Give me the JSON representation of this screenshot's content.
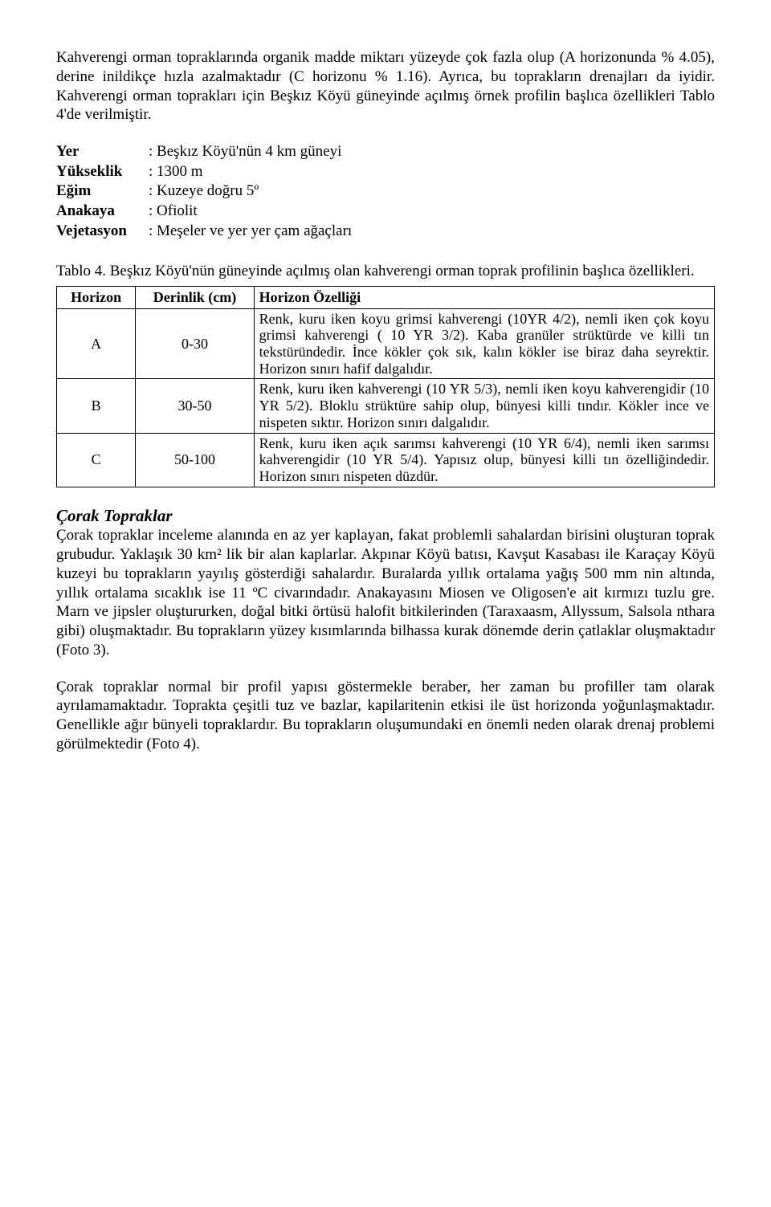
{
  "intro": "Kahverengi orman topraklarında organik madde miktarı yüzeyde çok fazla olup (A horizonunda % 4.05), derine inildikçe hızla azalmaktadır (C horizonu % 1.16). Ayrıca, bu toprakların drenajları da iyidir. Kahverengi orman toprakları için Beşkız Köyü güneyinde açılmış örnek profilin başlıca özellikleri Tablo 4'de verilmiştir.",
  "meta": {
    "rows": [
      {
        "label": "Yer",
        "value": ": Beşkız Köyü'nün 4 km güneyi"
      },
      {
        "label": "Yükseklik",
        "value": ": 1300 m"
      },
      {
        "label": "Eğim",
        "value": ": Kuzeye doğru 5º"
      },
      {
        "label": "Anakaya",
        "value": ": Ofiolit"
      },
      {
        "label": "Vejetasyon",
        "value": ": Meşeler ve yer yer çam ağaçları"
      }
    ]
  },
  "table_caption": "Tablo 4. Beşkız Köyü'nün güneyinde açılmış olan kahverengi orman toprak profilinin başlıca özellikleri.",
  "table": {
    "headers": [
      "Horizon",
      "Derinlik (cm)",
      "Horizon Özelliği"
    ],
    "rows": [
      {
        "h": "A",
        "d": "0-30",
        "desc": "Renk, kuru iken koyu grimsi kahverengi (10YR 4/2), nemli iken çok koyu grimsi kahverengi ( 10 YR 3/2). Kaba granüler strüktürde ve killi tın tekstüründedir. İnce kökler çok sık, kalın kökler ise biraz daha seyrektir. Horizon sınırı hafif dalgalıdır."
      },
      {
        "h": "B",
        "d": "30-50",
        "desc": "Renk, kuru iken kahverengi (10 YR 5/3), nemli iken koyu kahverengidir (10 YR 5/2). Bloklu strüktüre sahip olup, bünyesi killi tındır. Kökler ince ve nispeten sıktır. Horizon sınırı dalgalıdır."
      },
      {
        "h": "C",
        "d": "50-100",
        "desc": "Renk, kuru iken açık sarımsı kahverengi (10 YR 6/4), nemli iken sarımsı kahverengidir (10 YR 5/4). Yapısız olup, bünyesi killi tın özelliğindedir. Horizon sınırı nispeten düzdür."
      }
    ]
  },
  "section_title": "Çorak Topraklar",
  "section_para1": "Çorak topraklar inceleme alanında en az yer kaplayan, fakat problemli sahalardan birisini oluşturan toprak grubudur. Yaklaşık 30 km² lik bir alan kaplarlar. Akpınar Köyü batısı, Kavşut Kasabası ile Karaçay Köyü kuzeyi bu toprakların yayılış gösterdiği sahalardır. Buralarda yıllık ortalama yağış 500 mm nin altında, yıllık ortalama sıcaklık ise 11 ºC civarındadır. Anakayasını Miosen ve Oligosen'e ait kırmızı tuzlu gre. Marn ve jipsler oluştururken, doğal bitki örtüsü halofit bitkilerinden (Taraxaasm, Allyssum, Salsola nthara gibi) oluşmaktadır. Bu toprakların yüzey kısımlarında bilhassa kurak dönemde derin çatlaklar oluşmaktadır (Foto 3).",
  "section_para2": "Çorak topraklar normal bir profil yapısı göstermekle beraber, her zaman bu profiller tam olarak ayrılamamaktadır. Toprakta çeşitli tuz ve bazlar, kapilaritenin etkisi ile üst horizonda yoğunlaşmaktadır. Genellikle ağır bünyeli topraklardır. Bu toprakların oluşumundaki en önemli neden olarak drenaj problemi görülmektedir (Foto 4)."
}
